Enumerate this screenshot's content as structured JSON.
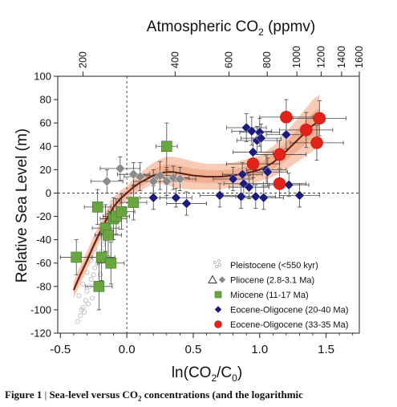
{
  "chart_data": {
    "type": "scatter",
    "top_axis_label_prefix": "Atmospheric CO",
    "top_axis_label_sub": "2",
    "top_axis_label_suffix": " (ppmv)",
    "xlabel_prefix": "ln(CO",
    "xlabel_sub1": "2",
    "xlabel_mid": "/C",
    "xlabel_sub2": "0",
    "xlabel_suffix": ")",
    "ylabel": "Relative Sea Level (m)",
    "xlim": [
      -0.52,
      1.75
    ],
    "ylim": [
      -120,
      100
    ],
    "x_ticks": [
      -0.5,
      0,
      0.5,
      1,
      1.5
    ],
    "x_tick_labels": [
      "-0.5",
      "0.0",
      "0.5",
      "1.0",
      "1.5"
    ],
    "y_ticks": [
      -120,
      -100,
      -80,
      -60,
      -40,
      -20,
      0,
      20,
      40,
      60,
      80,
      100
    ],
    "top_ticks_ppmv": [
      200,
      400,
      600,
      800,
      1000,
      1200,
      1400,
      1600
    ],
    "top_tick_labels": [
      "200",
      "400",
      "600",
      "800",
      "1000",
      "1200",
      "1400",
      "1600"
    ],
    "reference_co2_ppmv": 278,
    "reference_lines": {
      "x": 0,
      "y": 0
    },
    "legend_position": "bottom-right",
    "series": [
      {
        "name": "Pleistocene (<550 kyr)",
        "marker": "small-open-circle",
        "color": "#bdbdbd",
        "points": [
          [
            -0.37,
            -110
          ],
          [
            -0.35,
            -105
          ],
          [
            -0.33,
            -98
          ],
          [
            -0.31,
            -92
          ],
          [
            -0.36,
            -88
          ],
          [
            -0.3,
            -84
          ],
          [
            -0.28,
            -80
          ],
          [
            -0.33,
            -78
          ],
          [
            -0.27,
            -74
          ],
          [
            -0.25,
            -70
          ],
          [
            -0.3,
            -68
          ],
          [
            -0.24,
            -64
          ],
          [
            -0.22,
            -60
          ],
          [
            -0.27,
            -58
          ],
          [
            -0.21,
            -54
          ],
          [
            -0.19,
            -50
          ],
          [
            -0.24,
            -48
          ],
          [
            -0.18,
            -44
          ],
          [
            -0.16,
            -40
          ],
          [
            -0.21,
            -38
          ],
          [
            -0.15,
            -34
          ],
          [
            -0.13,
            -30
          ],
          [
            -0.17,
            -28
          ],
          [
            -0.12,
            -24
          ],
          [
            -0.1,
            -20
          ],
          [
            -0.14,
            -18
          ],
          [
            -0.09,
            -14
          ],
          [
            -0.07,
            -10
          ],
          [
            -0.11,
            -8
          ],
          [
            -0.05,
            -5
          ],
          [
            -0.04,
            -2
          ],
          [
            -0.08,
            -25
          ],
          [
            -0.2,
            -70
          ],
          [
            -0.26,
            -90
          ],
          [
            -0.32,
            -102
          ],
          [
            -0.29,
            -95
          ],
          [
            -0.23,
            -82
          ],
          [
            -0.34,
            -100
          ]
        ]
      },
      {
        "name": "Pliocene (2.8-3.1 Ma)",
        "marker": "diamond",
        "color": "#8a8a8a",
        "legend_extra_marker": "open-triangle",
        "points": [
          [
            -0.15,
            10
          ],
          [
            -0.05,
            21
          ],
          [
            0.05,
            16
          ],
          [
            0.1,
            14
          ],
          [
            0.2,
            10
          ],
          [
            0.25,
            15
          ],
          [
            0.35,
            13
          ],
          [
            0.4,
            12
          ],
          [
            0.3,
            10
          ]
        ],
        "x_err": [
          0.12,
          0.15,
          0.12,
          0.12,
          0.15,
          0.12,
          0.12,
          0.12,
          0.1
        ],
        "y_err": [
          10,
          10,
          10,
          12,
          10,
          12,
          10,
          10,
          12
        ]
      },
      {
        "name": "Miocene (11-17 Ma)",
        "marker": "square",
        "color": "#6aa640",
        "points": [
          [
            -0.38,
            -55
          ],
          [
            -0.22,
            -12
          ],
          [
            -0.21,
            -80
          ],
          [
            -0.19,
            -55
          ],
          [
            -0.16,
            -30
          ],
          [
            -0.14,
            -36
          ],
          [
            -0.12,
            -60
          ],
          [
            -0.1,
            -22
          ],
          [
            -0.08,
            -20
          ],
          [
            -0.04,
            -16
          ],
          [
            0.05,
            -8
          ],
          [
            0.3,
            40
          ]
        ],
        "x_err": [
          0.12,
          0.1,
          0.1,
          0.1,
          0.1,
          0.1,
          0.1,
          0.1,
          0.1,
          0.1,
          0.1,
          0.08
        ],
        "y_err": [
          15,
          15,
          20,
          20,
          20,
          18,
          18,
          18,
          15,
          15,
          15,
          20
        ]
      },
      {
        "name": "Eocene-Oligocene (20-40 Ma)",
        "marker": "diamond",
        "color": "#1c1c7a",
        "points": [
          [
            0.2,
            -4
          ],
          [
            0.37,
            -4
          ],
          [
            0.45,
            -9
          ],
          [
            0.7,
            -2
          ],
          [
            0.8,
            12
          ],
          [
            0.86,
            -3
          ],
          [
            0.87,
            16
          ],
          [
            0.88,
            8
          ],
          [
            0.9,
            56
          ],
          [
            0.92,
            5
          ],
          [
            0.94,
            53
          ],
          [
            0.95,
            35
          ],
          [
            0.97,
            -3
          ],
          [
            0.98,
            45
          ],
          [
            1.0,
            52
          ],
          [
            1.01,
            47
          ],
          [
            1.03,
            -4
          ],
          [
            1.05,
            20
          ],
          [
            1.06,
            18
          ],
          [
            1.2,
            50
          ],
          [
            1.22,
            7
          ],
          [
            1.3,
            -2
          ]
        ],
        "x_err": [
          0.1,
          0.12,
          0.15,
          0.15,
          0.15,
          0.15,
          0.15,
          0.15,
          0.15,
          0.15,
          0.15,
          0.15,
          0.15,
          0.15,
          0.15,
          0.15,
          0.15,
          0.15,
          0.15,
          0.15,
          0.15,
          0.15
        ],
        "y_err": [
          10,
          8,
          10,
          10,
          10,
          10,
          10,
          10,
          12,
          10,
          12,
          12,
          10,
          12,
          12,
          12,
          10,
          12,
          12,
          12,
          10,
          10
        ]
      },
      {
        "name": "Eocene-Oligocene (33-35 Ma)",
        "marker": "circle",
        "color": "#e3221a",
        "points": [
          [
            0.95,
            25
          ],
          [
            1.15,
            33
          ],
          [
            1.15,
            8
          ],
          [
            1.2,
            65
          ],
          [
            1.35,
            54
          ],
          [
            1.43,
            43
          ],
          [
            1.45,
            64
          ]
        ],
        "x_err": [
          0.2,
          0.2,
          0.2,
          0.2,
          0.2,
          0.2,
          0.2
        ],
        "y_err": [
          12,
          12,
          12,
          15,
          15,
          15,
          15
        ]
      }
    ],
    "fit_curve": {
      "color": "#5a1e14",
      "x": [
        -0.4,
        -0.35,
        -0.3,
        -0.25,
        -0.2,
        -0.15,
        -0.1,
        -0.05,
        0,
        0.05,
        0.1,
        0.15,
        0.2,
        0.25,
        0.3,
        0.35,
        0.4,
        0.5,
        0.6,
        0.7,
        0.8,
        0.9,
        1.0,
        1.1,
        1.2,
        1.3,
        1.4,
        1.45
      ],
      "y": [
        -83,
        -70,
        -58,
        -45,
        -33,
        -22,
        -12,
        -5,
        0,
        5,
        9,
        12,
        15,
        17,
        18,
        18,
        17,
        15,
        14,
        14,
        15,
        17,
        20,
        26,
        36,
        47,
        58,
        62
      ],
      "band_lower": [
        -90,
        -78,
        -66,
        -53,
        -41,
        -30,
        -20,
        -12,
        -6,
        -2,
        2,
        5,
        8,
        8,
        7,
        5,
        4,
        3,
        3,
        3,
        5,
        7,
        10,
        14,
        20,
        28,
        36,
        40
      ],
      "band_upper": [
        -76,
        -62,
        -50,
        -37,
        -25,
        -14,
        -4,
        2,
        6,
        12,
        17,
        22,
        26,
        29,
        31,
        31,
        30,
        27,
        25,
        25,
        26,
        29,
        32,
        40,
        52,
        66,
        80,
        84
      ],
      "band_color": "#f4b99c"
    },
    "legend": [
      {
        "label": "Pleistocene (<550 kyr)"
      },
      {
        "label": "Pliocene (2.8-3.1 Ma)"
      },
      {
        "label": "Miocene (11-17 Ma)"
      },
      {
        "label": "Eocene-Oligocene (20-40 Ma)"
      },
      {
        "label": "Eocene-Oligocene (33-35 Ma)"
      }
    ]
  },
  "caption": {
    "figure_label": "Figure 1",
    "separator": " | ",
    "text_prefix": "Sea-level versus CO",
    "text_sub": "2",
    "text_suffix": " concentrations (and the logarithmic"
  }
}
